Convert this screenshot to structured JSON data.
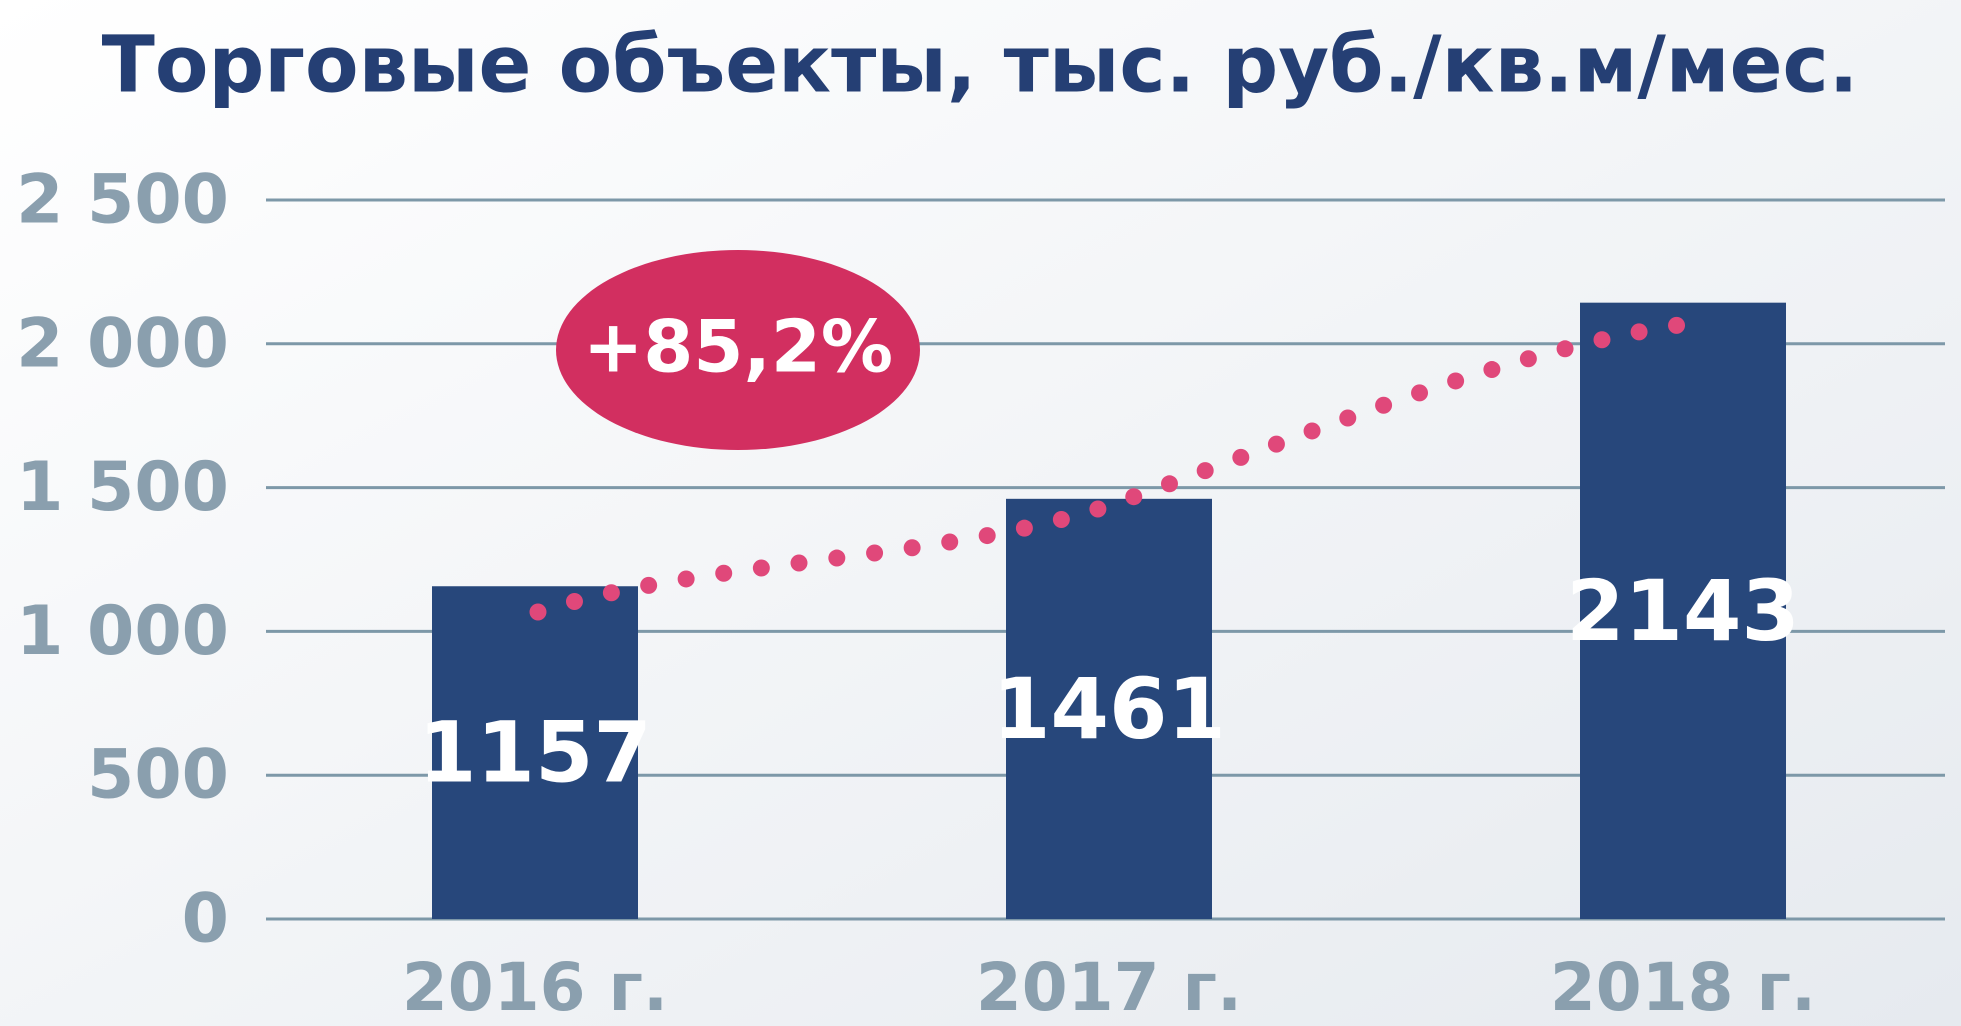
{
  "chart_data": {
    "type": "bar",
    "title": "Торговые объекты, тыс. руб./кв.м/мес.",
    "categories": [
      "2016 г.",
      "2017 г.",
      "2018 г."
    ],
    "values": [
      1157,
      1461,
      2143
    ],
    "color": "#27477b",
    "ylim": [
      0,
      2500
    ],
    "yticks": [
      0,
      500,
      {
        "value": 1000,
        "label": "1 000"
      },
      {
        "value": 1500,
        "label": "1 500"
      },
      {
        "value": 2000,
        "label": "2 000"
      },
      {
        "value": 2500,
        "label": "2 500"
      }
    ],
    "grid": true,
    "annotation": "+85,2%"
  }
}
